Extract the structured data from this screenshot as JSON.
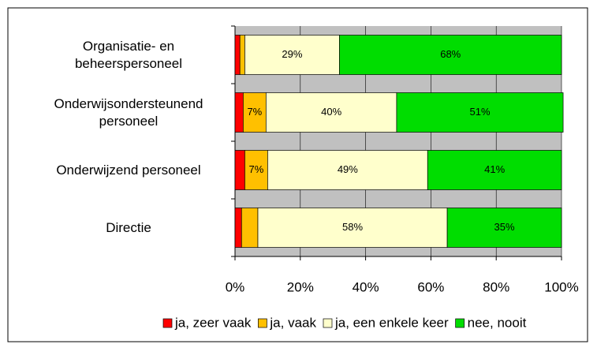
{
  "chart_data": {
    "type": "stacked-barh",
    "categories": [
      "Organisatie- en beheerspersoneel",
      "Onderwijsondersteunend personeel",
      "Onderwijzend personeel",
      "Directie"
    ],
    "series": [
      {
        "name": "ja, zeer vaak",
        "color": "#ff0000",
        "values": [
          1.5,
          2.5,
          3,
          2
        ],
        "value_labels": [
          null,
          null,
          null,
          null
        ]
      },
      {
        "name": "ja, vaak",
        "color": "#ffc000",
        "values": [
          1.5,
          7,
          7,
          5
        ],
        "value_labels": [
          null,
          "7%",
          "7%",
          null
        ]
      },
      {
        "name": "ja, een enkele keer",
        "color": "#ffffcc",
        "values": [
          29,
          40,
          49,
          58
        ],
        "value_labels": [
          "29%",
          "40%",
          "49%",
          "58%"
        ]
      },
      {
        "name": "nee, nooit",
        "color": "#00dd00",
        "values": [
          68,
          51,
          41,
          35
        ],
        "value_labels": [
          "68%",
          "51%",
          "41%",
          "35%"
        ]
      }
    ],
    "xlim": [
      0,
      100
    ],
    "xticks": [
      {
        "value": 0,
        "label": "0%"
      },
      {
        "value": 20,
        "label": "20%"
      },
      {
        "value": 40,
        "label": "40%"
      },
      {
        "value": 60,
        "label": "60%"
      },
      {
        "value": 80,
        "label": "80%"
      },
      {
        "value": 100,
        "label": "100%"
      }
    ],
    "grid": true,
    "legend": "bottom"
  }
}
